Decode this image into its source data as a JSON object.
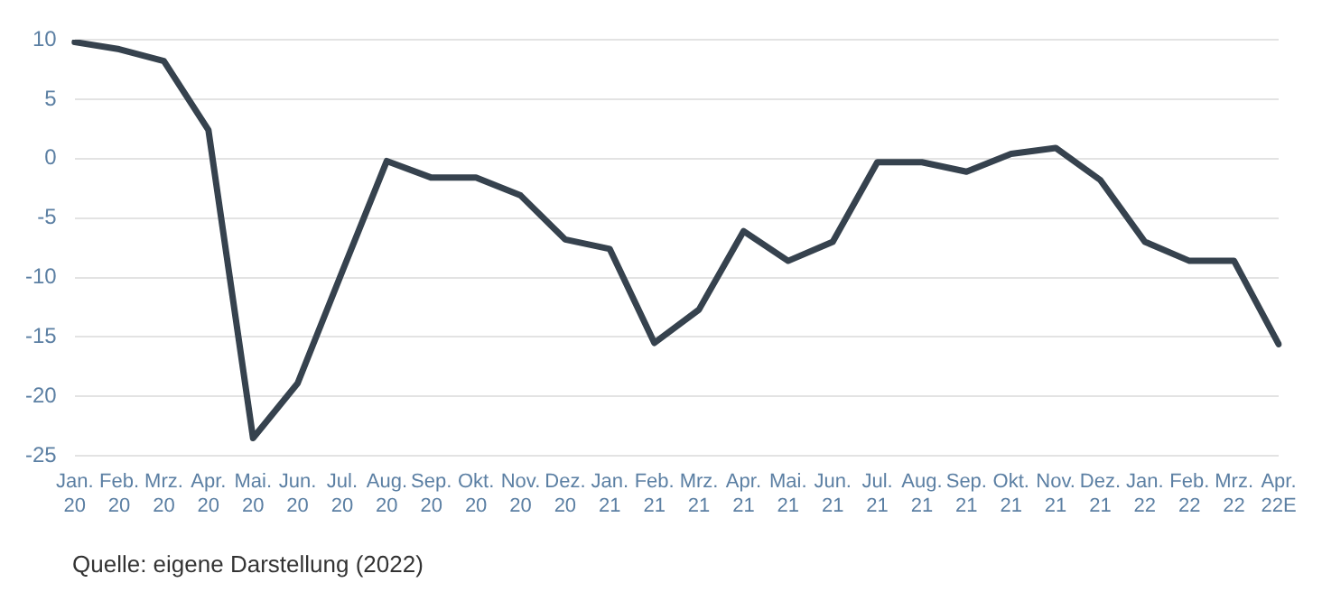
{
  "chart_data": {
    "type": "line",
    "categories": [
      "Jan. 20",
      "Feb. 20",
      "Mrz. 20",
      "Apr. 20",
      "Mai. 20",
      "Jun. 20",
      "Jul. 20",
      "Aug. 20",
      "Sep. 20",
      "Okt. 20",
      "Nov. 20",
      "Dez. 20",
      "Jan. 21",
      "Feb. 21",
      "Mrz. 21",
      "Apr. 21",
      "Mai. 21",
      "Jun. 21",
      "Jul. 21",
      "Aug. 21",
      "Sep. 21",
      "Okt. 21",
      "Nov. 21",
      "Dez. 21",
      "Jan. 22",
      "Feb. 22",
      "Mrz. 22",
      "Apr. 22E"
    ],
    "series": [
      {
        "color": "#36424e",
        "values": [
          9.8,
          9.2,
          8.2,
          2.4,
          -23.5,
          -18.9,
          -9.5,
          -0.2,
          -1.6,
          -1.6,
          -3.1,
          -6.8,
          -7.6,
          -15.5,
          -12.7,
          -6.1,
          -8.6,
          -7.0,
          -0.3,
          -0.3,
          -1.1,
          0.4,
          0.9,
          -1.8,
          -7.0,
          -8.6,
          -8.6,
          -15.6
        ]
      }
    ],
    "ylim": [
      -25,
      10
    ],
    "yticks": [
      -25,
      -20,
      -15,
      -10,
      -5,
      0,
      5,
      10
    ],
    "grid": "y",
    "legend": false,
    "marker": "none",
    "line_style": "solid",
    "annotations": [
      "Quelle: eigene Darstellung (2022)"
    ]
  }
}
